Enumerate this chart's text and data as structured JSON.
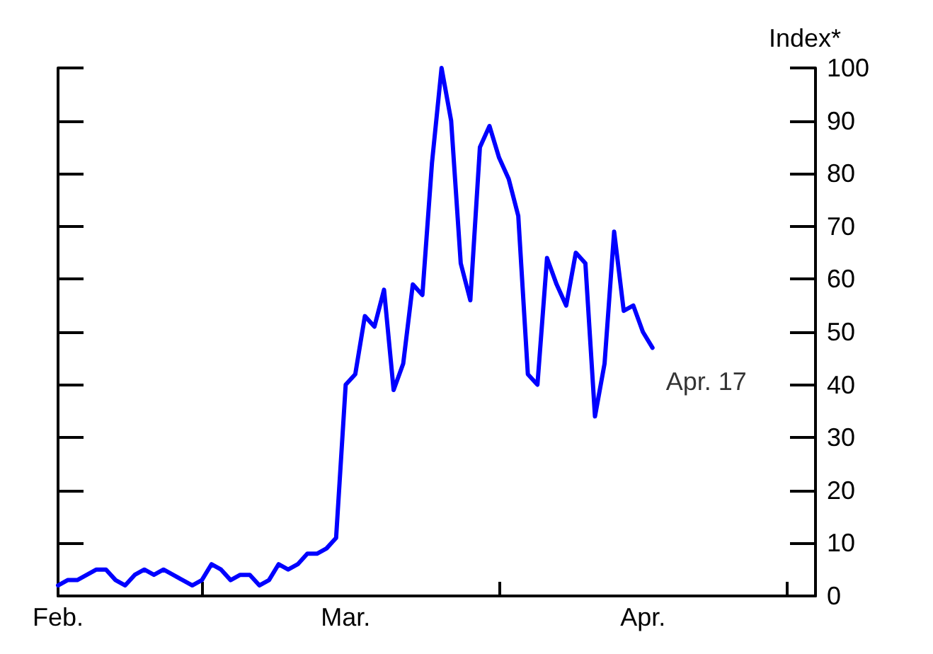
{
  "chart_data": {
    "type": "line",
    "ylabel": "Index*",
    "x": [
      "--02-15",
      "--02-16",
      "--02-17",
      "--02-18",
      "--02-19",
      "--02-20",
      "--02-21",
      "--02-22",
      "--02-23",
      "--02-24",
      "--02-25",
      "--02-26",
      "--02-27",
      "--02-28",
      "--02-29",
      "--03-01",
      "--03-02",
      "--03-03",
      "--03-04",
      "--03-05",
      "--03-06",
      "--03-07",
      "--03-08",
      "--03-09",
      "--03-10",
      "--03-11",
      "--03-12",
      "--03-13",
      "--03-14",
      "--03-15",
      "--03-16",
      "--03-17",
      "--03-18",
      "--03-19",
      "--03-20",
      "--03-21",
      "--03-22",
      "--03-23",
      "--03-24",
      "--03-25",
      "--03-26",
      "--03-27",
      "--03-28",
      "--03-29",
      "--03-30",
      "--03-31",
      "--04-01",
      "--04-02",
      "--04-03",
      "--04-04",
      "--04-05",
      "--04-06",
      "--04-07",
      "--04-08",
      "--04-09",
      "--04-10",
      "--04-11",
      "--04-12",
      "--04-13",
      "--04-14",
      "--04-15",
      "--04-16",
      "--04-17"
    ],
    "series": [
      {
        "color": "#0000ff",
        "values": [
          2,
          3,
          3,
          4,
          5,
          5,
          3,
          2,
          4,
          5,
          4,
          5,
          4,
          3,
          2,
          3,
          6,
          5,
          3,
          4,
          4,
          2,
          3,
          6,
          5,
          6,
          8,
          8,
          9,
          11,
          40,
          42,
          53,
          51,
          58,
          39,
          44,
          59,
          57,
          82,
          100,
          90,
          63,
          56,
          85,
          89,
          83,
          79,
          72,
          42,
          40,
          64,
          59,
          55,
          65,
          63,
          34,
          44,
          69,
          54,
          55,
          50,
          47
        ]
      }
    ],
    "xlim": [
      "--02-15",
      "--05-04"
    ],
    "xticks": [
      {
        "value": "--02-15",
        "label": "Feb."
      },
      {
        "value": "--03-01",
        "label": null
      },
      {
        "value": "--03-16",
        "label": "Mar."
      },
      {
        "value": "--04-01",
        "label": null
      },
      {
        "value": "--04-16",
        "label": "Apr."
      },
      {
        "value": "--05-01",
        "label": null
      }
    ],
    "ylim": [
      0,
      100
    ],
    "yticks": [
      0,
      10,
      20,
      30,
      40,
      50,
      60,
      70,
      80,
      90,
      100
    ],
    "annotations": [
      {
        "text": "Apr. 17",
        "x": "--04-17",
        "y": 47
      }
    ],
    "line_style": "solid",
    "marker": "none"
  }
}
